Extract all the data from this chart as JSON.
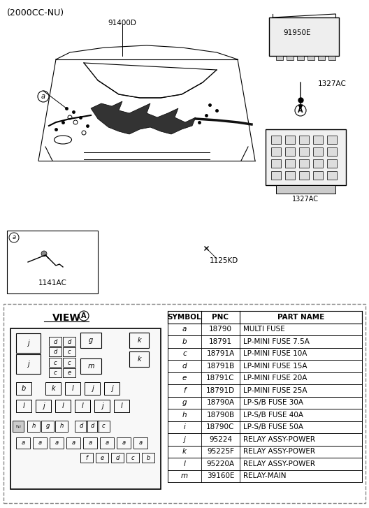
{
  "title": "(2000CC-NU)",
  "bg_color": "#ffffff",
  "table_headers": [
    "SYMBOL",
    "PNC",
    "PART NAME"
  ],
  "table_rows": [
    [
      "a",
      "18790",
      "MULTI FUSE"
    ],
    [
      "b",
      "18791",
      "LP-MINI FUSE 7.5A"
    ],
    [
      "c",
      "18791A",
      "LP-MINI FUSE 10A"
    ],
    [
      "d",
      "18791B",
      "LP-MINI FUSE 15A"
    ],
    [
      "e",
      "18791C",
      "LP-MINI FUSE 20A"
    ],
    [
      "f",
      "18791D",
      "LP-MINI FUSE 25A"
    ],
    [
      "g",
      "18790A",
      "LP-S/B FUSE 30A"
    ],
    [
      "h",
      "18790B",
      "LP-S/B FUSE 40A"
    ],
    [
      "i",
      "18790C",
      "LP-S/B FUSE 50A"
    ],
    [
      "j",
      "95224",
      "RELAY ASSY-POWER"
    ],
    [
      "k",
      "95225F",
      "RELAY ASSY-POWER"
    ],
    [
      "l",
      "95220A",
      "RELAY ASSY-POWER"
    ],
    [
      "m",
      "39160E",
      "RELAY-MAIN"
    ]
  ],
  "labels_top": [
    "91400D",
    "91950E",
    "1327AC",
    "1125KD",
    "1141AC"
  ],
  "view_label": "VIEW",
  "callout_a": "a",
  "line_color": "#000000",
  "dashed_color": "#555555"
}
